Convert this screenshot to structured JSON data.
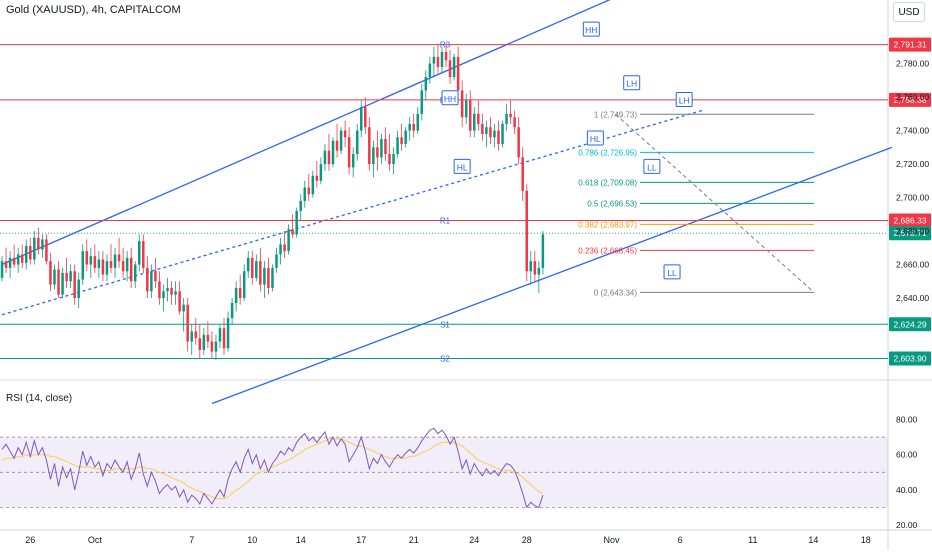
{
  "title": "Gold (XAUUSD), 4h, CAPITALCOM",
  "currency": "USD",
  "rsi_title": "RSI (14, close)",
  "colors": {
    "up": "#089981",
    "down": "#f23645",
    "channel": "#2962ff",
    "rsi": "#7e57c2",
    "rsi_ma": "#f7d26b",
    "level_line": "#f23645",
    "support_line": "#089981"
  },
  "chart_data": {
    "type": "candlestick",
    "title": "Gold (XAUUSD), 4h, CAPITALCOM",
    "ylim": [
      2597,
      2818
    ],
    "y_ticks": [
      2640,
      2660,
      2680,
      2700,
      2720,
      2740,
      2760,
      2780
    ],
    "y_tick_labels": [
      "2,640.00",
      "2,660.00",
      "2,680.00",
      "2,700.00",
      "2,720.00",
      "2,740.00",
      "2,760.00",
      "2,780.00"
    ],
    "x_ticks": [
      {
        "label": "26",
        "bar": 7
      },
      {
        "label": "Oct",
        "bar": 23
      },
      {
        "label": "7",
        "bar": 47
      },
      {
        "label": "10",
        "bar": 62
      },
      {
        "label": "14",
        "bar": 74
      },
      {
        "label": "17",
        "bar": 89
      },
      {
        "label": "21",
        "bar": 102
      },
      {
        "label": "24",
        "bar": 117
      },
      {
        "label": "28",
        "bar": 130
      },
      {
        "label": "Nov",
        "bar": 151
      },
      {
        "label": "6",
        "bar": 168
      },
      {
        "label": "11",
        "bar": 186
      },
      {
        "label": "14",
        "bar": 201
      },
      {
        "label": "18",
        "bar": 214
      }
    ],
    "horizontal_levels": [
      {
        "name": "R3",
        "price": 2791.31,
        "label": "2,791.31",
        "color": "#f23645"
      },
      {
        "name": "R2",
        "price": 2758.38,
        "label": "2,758.38",
        "color": "#f23645"
      },
      {
        "name": "R1",
        "price": 2686.33,
        "label": "2,686.33",
        "color": "#f23645"
      },
      {
        "name": "S1",
        "price": 2624.29,
        "label": "2,624.29",
        "color": "#089981"
      },
      {
        "name": "S2",
        "price": 2603.9,
        "label": "2,603.90",
        "color": "#089981"
      }
    ],
    "last_price": {
      "price": 2678.71,
      "label": "2,678.71"
    },
    "fibonacci": [
      {
        "label": "1 (2,749.73)",
        "price": 2749.73,
        "color": "#787b86"
      },
      {
        "label": "0.786 (2,726.95)",
        "price": 2726.95,
        "color": "#00bcd4"
      },
      {
        "label": "0.618 (2,709.08)",
        "price": 2709.08,
        "color": "#089981"
      },
      {
        "label": "0.5 (2,696.53)",
        "price": 2696.53,
        "color": "#089981"
      },
      {
        "label": "0.382 (2,683.97)",
        "price": 2683.97,
        "color": "#ff9800"
      },
      {
        "label": "0.236 (2,668.45)",
        "price": 2668.45,
        "color": "#f23645"
      },
      {
        "label": "0 (2,643.34)",
        "price": 2643.34,
        "color": "#787b86"
      }
    ],
    "swing_labels": [
      {
        "text": "HH",
        "bar": 146,
        "price": 2800
      },
      {
        "text": "HH",
        "bar": 111,
        "price": 2759
      },
      {
        "text": "HL",
        "bar": 114,
        "price": 2718
      },
      {
        "text": "LH",
        "bar": 156,
        "price": 2768
      },
      {
        "text": "HL",
        "bar": 147,
        "price": 2735
      },
      {
        "text": "LL",
        "bar": 161,
        "price": 2718
      },
      {
        "text": "LH",
        "bar": 169,
        "price": 2758
      },
      {
        "text": "LL",
        "bar": 166,
        "price": 2655
      }
    ],
    "candles_ohlc": [
      [
        2652,
        2665,
        2650,
        2662
      ],
      [
        2662,
        2670,
        2655,
        2658
      ],
      [
        2658,
        2668,
        2652,
        2664
      ],
      [
        2664,
        2672,
        2658,
        2660
      ],
      [
        2660,
        2670,
        2655,
        2666
      ],
      [
        2666,
        2672,
        2658,
        2661
      ],
      [
        2661,
        2675,
        2657,
        2671
      ],
      [
        2671,
        2676,
        2660,
        2663
      ],
      [
        2663,
        2680,
        2660,
        2676
      ],
      [
        2676,
        2682,
        2666,
        2669
      ],
      [
        2669,
        2678,
        2664,
        2675
      ],
      [
        2675,
        2678,
        2660,
        2662
      ],
      [
        2662,
        2667,
        2644,
        2648
      ],
      [
        2648,
        2660,
        2645,
        2657
      ],
      [
        2657,
        2662,
        2640,
        2642
      ],
      [
        2642,
        2658,
        2640,
        2655
      ],
      [
        2655,
        2664,
        2646,
        2650
      ],
      [
        2650,
        2660,
        2646,
        2656
      ],
      [
        2656,
        2660,
        2636,
        2640
      ],
      [
        2640,
        2655,
        2634,
        2651
      ],
      [
        2651,
        2672,
        2648,
        2668
      ],
      [
        2668,
        2675,
        2656,
        2660
      ],
      [
        2660,
        2670,
        2652,
        2665
      ],
      [
        2665,
        2672,
        2655,
        2658
      ],
      [
        2658,
        2668,
        2652,
        2663
      ],
      [
        2663,
        2668,
        2650,
        2654
      ],
      [
        2654,
        2666,
        2650,
        2662
      ],
      [
        2662,
        2672,
        2655,
        2658
      ],
      [
        2658,
        2670,
        2652,
        2666
      ],
      [
        2666,
        2676,
        2658,
        2662
      ],
      [
        2662,
        2670,
        2652,
        2656
      ],
      [
        2656,
        2668,
        2650,
        2664
      ],
      [
        2664,
        2670,
        2646,
        2650
      ],
      [
        2650,
        2662,
        2646,
        2660
      ],
      [
        2660,
        2678,
        2656,
        2674
      ],
      [
        2674,
        2678,
        2655,
        2658
      ],
      [
        2658,
        2665,
        2640,
        2644
      ],
      [
        2644,
        2660,
        2640,
        2656
      ],
      [
        2656,
        2664,
        2646,
        2650
      ],
      [
        2650,
        2656,
        2636,
        2640
      ],
      [
        2640,
        2648,
        2632,
        2644
      ],
      [
        2644,
        2652,
        2638,
        2646
      ],
      [
        2646,
        2650,
        2636,
        2642
      ],
      [
        2642,
        2650,
        2636,
        2644
      ],
      [
        2644,
        2650,
        2630,
        2632
      ],
      [
        2632,
        2640,
        2620,
        2636
      ],
      [
        2636,
        2640,
        2608,
        2614
      ],
      [
        2614,
        2624,
        2606,
        2620
      ],
      [
        2620,
        2628,
        2612,
        2616
      ],
      [
        2616,
        2624,
        2604,
        2609
      ],
      [
        2609,
        2622,
        2606,
        2618
      ],
      [
        2618,
        2626,
        2610,
        2614
      ],
      [
        2614,
        2620,
        2604,
        2608
      ],
      [
        2608,
        2618,
        2603,
        2614
      ],
      [
        2614,
        2624,
        2610,
        2622
      ],
      [
        2622,
        2628,
        2606,
        2610
      ],
      [
        2610,
        2632,
        2608,
        2628
      ],
      [
        2628,
        2640,
        2624,
        2637
      ],
      [
        2637,
        2650,
        2632,
        2646
      ],
      [
        2646,
        2654,
        2636,
        2640
      ],
      [
        2640,
        2660,
        2638,
        2656
      ],
      [
        2656,
        2668,
        2652,
        2664
      ],
      [
        2664,
        2668,
        2648,
        2652
      ],
      [
        2652,
        2666,
        2650,
        2662
      ],
      [
        2662,
        2670,
        2644,
        2648
      ],
      [
        2648,
        2662,
        2640,
        2658
      ],
      [
        2658,
        2664,
        2642,
        2646
      ],
      [
        2646,
        2660,
        2644,
        2658
      ],
      [
        2658,
        2670,
        2655,
        2666
      ],
      [
        2666,
        2676,
        2660,
        2672
      ],
      [
        2672,
        2680,
        2664,
        2668
      ],
      [
        2668,
        2684,
        2666,
        2681
      ],
      [
        2681,
        2690,
        2676,
        2678
      ],
      [
        2678,
        2694,
        2676,
        2692
      ],
      [
        2692,
        2702,
        2686,
        2698
      ],
      [
        2698,
        2710,
        2694,
        2706
      ],
      [
        2706,
        2714,
        2698,
        2702
      ],
      [
        2702,
        2716,
        2700,
        2713
      ],
      [
        2713,
        2722,
        2706,
        2710
      ],
      [
        2710,
        2724,
        2708,
        2720
      ],
      [
        2720,
        2732,
        2716,
        2728
      ],
      [
        2728,
        2738,
        2716,
        2720
      ],
      [
        2720,
        2736,
        2718,
        2734
      ],
      [
        2734,
        2744,
        2724,
        2728
      ],
      [
        2728,
        2742,
        2726,
        2740
      ],
      [
        2740,
        2746,
        2730,
        2736
      ],
      [
        2736,
        2742,
        2714,
        2718
      ],
      [
        2718,
        2730,
        2712,
        2726
      ],
      [
        2726,
        2744,
        2722,
        2740
      ],
      [
        2740,
        2758,
        2736,
        2754
      ],
      [
        2754,
        2760,
        2738,
        2742
      ],
      [
        2742,
        2748,
        2716,
        2720
      ],
      [
        2720,
        2734,
        2712,
        2730
      ],
      [
        2730,
        2740,
        2716,
        2724
      ],
      [
        2724,
        2738,
        2720,
        2735
      ],
      [
        2735,
        2742,
        2722,
        2726
      ],
      [
        2726,
        2738,
        2716,
        2720
      ],
      [
        2720,
        2730,
        2714,
        2726
      ],
      [
        2726,
        2740,
        2724,
        2736
      ],
      [
        2736,
        2744,
        2728,
        2732
      ],
      [
        2732,
        2742,
        2730,
        2740
      ],
      [
        2740,
        2748,
        2734,
        2744
      ],
      [
        2744,
        2750,
        2736,
        2740
      ],
      [
        2740,
        2754,
        2738,
        2750
      ],
      [
        2750,
        2768,
        2746,
        2764
      ],
      [
        2764,
        2776,
        2758,
        2772
      ],
      [
        2772,
        2784,
        2768,
        2780
      ],
      [
        2780,
        2790,
        2772,
        2784
      ],
      [
        2784,
        2792,
        2774,
        2778
      ],
      [
        2778,
        2790,
        2774,
        2787
      ],
      [
        2787,
        2792,
        2778,
        2782
      ],
      [
        2782,
        2788,
        2768,
        2772
      ],
      [
        2772,
        2786,
        2770,
        2784
      ],
      [
        2784,
        2790,
        2760,
        2764
      ],
      [
        2764,
        2770,
        2742,
        2748
      ],
      [
        2748,
        2762,
        2744,
        2758
      ],
      [
        2758,
        2764,
        2736,
        2740
      ],
      [
        2740,
        2754,
        2736,
        2750
      ],
      [
        2750,
        2758,
        2740,
        2744
      ],
      [
        2744,
        2750,
        2734,
        2738
      ],
      [
        2738,
        2746,
        2730,
        2742
      ],
      [
        2742,
        2748,
        2732,
        2736
      ],
      [
        2736,
        2744,
        2730,
        2740
      ],
      [
        2740,
        2746,
        2728,
        2732
      ],
      [
        2732,
        2746,
        2730,
        2744
      ],
      [
        2744,
        2756,
        2740,
        2750
      ],
      [
        2750,
        2758,
        2744,
        2748
      ],
      [
        2748,
        2752,
        2738,
        2742
      ],
      [
        2742,
        2748,
        2720,
        2724
      ],
      [
        2724,
        2730,
        2698,
        2704
      ],
      [
        2704,
        2708,
        2650,
        2656
      ],
      [
        2656,
        2668,
        2648,
        2662
      ],
      [
        2662,
        2668,
        2650,
        2654
      ],
      [
        2654,
        2662,
        2643,
        2658
      ],
      [
        2658,
        2680,
        2654,
        2678
      ]
    ],
    "rsi": {
      "name": "RSI (14, close)",
      "ylim": [
        20,
        90
      ],
      "y_ticks": [
        20,
        40,
        60,
        80
      ],
      "y_tick_labels": [
        "20.00",
        "40.00",
        "60.00",
        "80.00"
      ],
      "band": [
        30,
        70
      ],
      "values": [
        63,
        66,
        62,
        58,
        64,
        60,
        67,
        59,
        68,
        60,
        64,
        57,
        46,
        55,
        42,
        53,
        47,
        52,
        40,
        50,
        62,
        54,
        59,
        53,
        56,
        48,
        55,
        52,
        57,
        53,
        50,
        56,
        46,
        52,
        61,
        49,
        42,
        50,
        45,
        38,
        41,
        43,
        40,
        42,
        36,
        40,
        33,
        37,
        35,
        32,
        38,
        35,
        32,
        36,
        40,
        36,
        46,
        52,
        56,
        50,
        58,
        63,
        55,
        60,
        52,
        57,
        50,
        55,
        58,
        62,
        60,
        64,
        62,
        67,
        70,
        72,
        68,
        70,
        67,
        70,
        73,
        66,
        70,
        65,
        69,
        66,
        56,
        60,
        64,
        70,
        62,
        52,
        58,
        55,
        60,
        56,
        53,
        57,
        60,
        58,
        61,
        63,
        61,
        64,
        68,
        71,
        74,
        75,
        72,
        74,
        71,
        66,
        70,
        62,
        52,
        57,
        49,
        55,
        51,
        48,
        52,
        49,
        51,
        48,
        52,
        55,
        54,
        51,
        45,
        38,
        30,
        33,
        31,
        30,
        37
      ],
      "ma_values": [
        57,
        58,
        58,
        58,
        59,
        59,
        60,
        59,
        60,
        60,
        60,
        60,
        59,
        59,
        58,
        57,
        56,
        55,
        54,
        53,
        53,
        53,
        53,
        52,
        52,
        51,
        51,
        51,
        52,
        52,
        52,
        52,
        52,
        52,
        53,
        53,
        52,
        52,
        51,
        50,
        49,
        48,
        47,
        46,
        45,
        44,
        42,
        41,
        40,
        39,
        38,
        37,
        36,
        35,
        35,
        35,
        36,
        38,
        40,
        41,
        43,
        45,
        47,
        49,
        50,
        51,
        52,
        53,
        54,
        55,
        56,
        57,
        58,
        60,
        61,
        63,
        64,
        65,
        66,
        67,
        68,
        69,
        69,
        69,
        69,
        68,
        67,
        66,
        65,
        65,
        64,
        63,
        62,
        61,
        60,
        59,
        58,
        58,
        58,
        58,
        58,
        59,
        59,
        60,
        61,
        62,
        63,
        65,
        66,
        67,
        67,
        67,
        67,
        66,
        65,
        63,
        61,
        59,
        57,
        56,
        55,
        54,
        53,
        52,
        51,
        51,
        51,
        50,
        49,
        47,
        45,
        43,
        41,
        39,
        38
      ]
    }
  }
}
